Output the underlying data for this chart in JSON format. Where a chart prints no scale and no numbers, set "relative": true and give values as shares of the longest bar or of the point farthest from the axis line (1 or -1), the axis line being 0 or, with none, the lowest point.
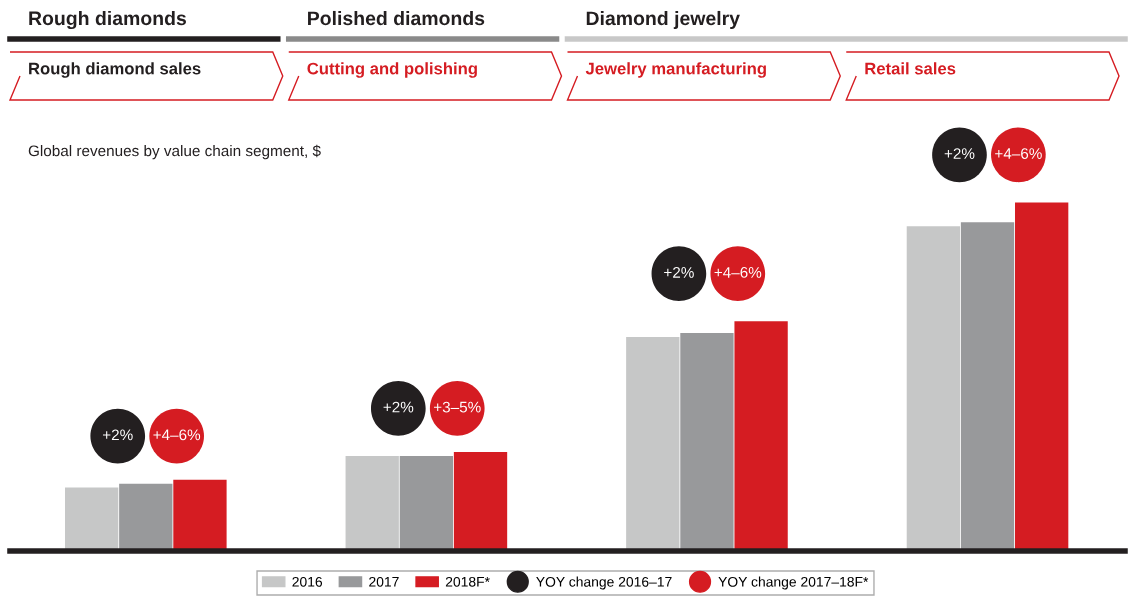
{
  "chart_data": {
    "type": "bar",
    "subtitle": "Global revenues by value chain segment, $",
    "annotations": [
      "Rough diamonds",
      "Polished diamonds",
      "Diamond jewelry",
      "+2%",
      "+4–6%",
      "+2%",
      "+3–5%",
      "+2%",
      "+4–6%",
      "+2%",
      "+4–6%"
    ],
    "categories": [
      "Rough diamond sales",
      "Cutting and polishing",
      "Jewelry manufacturing",
      "Retail sales"
    ],
    "relative": true,
    "series": [
      {
        "name": "2016",
        "color": "#c6c7c7",
        "values": [
          0.16,
          0.24,
          0.54,
          0.82
        ]
      },
      {
        "name": "2017",
        "color": "#98999b",
        "values": [
          0.17,
          0.24,
          0.55,
          0.83
        ]
      },
      {
        "name": "2018F*",
        "color": "#d51c22",
        "values": [
          0.18,
          0.25,
          0.58,
          0.88
        ]
      },
      {
        "name": "YOY change 2016–17",
        "type": "scatter",
        "color": "#231f20",
        "x": [
          "Rough diamond sales",
          "Cutting and polishing",
          "Jewelry manufacturing",
          "Retail sales"
        ],
        "values": [
          0.29,
          0.36,
          0.7,
          1.0
        ]
      },
      {
        "name": "YOY change 2017–18F*",
        "type": "scatter",
        "color": "#d51c22",
        "x": [
          "Rough diamond sales",
          "Cutting and polishing",
          "Jewelry manufacturing",
          "Retail sales"
        ],
        "values": [
          0.29,
          0.36,
          0.7,
          1.0
        ]
      }
    ],
    "legend": "bottom",
    "marker": "circle"
  }
}
